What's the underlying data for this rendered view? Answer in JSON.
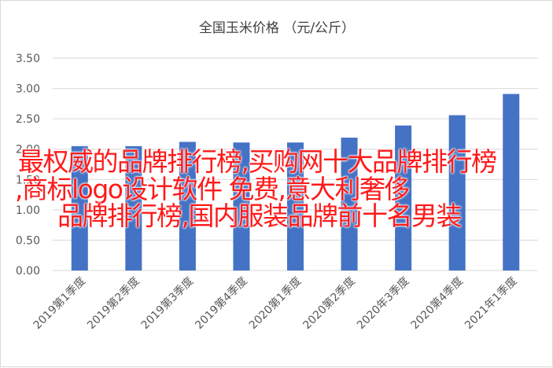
{
  "chart_data": {
    "type": "bar",
    "title": "全国玉米价格 （元/公斤）",
    "xlabel": "",
    "ylabel": "",
    "ylim": [
      0,
      3.5
    ],
    "yticks": [
      "0.00",
      "0.50",
      "1.00",
      "1.50",
      "2.00",
      "2.50",
      "3.00",
      "3.50"
    ],
    "grid": true,
    "bar_color": "#4472c4",
    "categories": [
      "2019第1季度",
      "2019第2季度",
      "2019第3季度",
      "2019第4季度",
      "2020第1季度",
      "2020第2季度",
      "2020年3季度",
      "2020第4季度",
      "2021年1季度"
    ],
    "values": [
      2.05,
      2.05,
      2.12,
      2.11,
      2.11,
      2.19,
      2.39,
      2.56,
      2.91
    ]
  },
  "overlay": {
    "color": "#ff1a1a",
    "lines": [
      "最权威的品牌排行榜,买购网十大品牌排行榜",
      ",商标logo设计软件 免费,意大利奢侈",
      "品牌排行榜,国内服装品牌前十名男装"
    ]
  }
}
